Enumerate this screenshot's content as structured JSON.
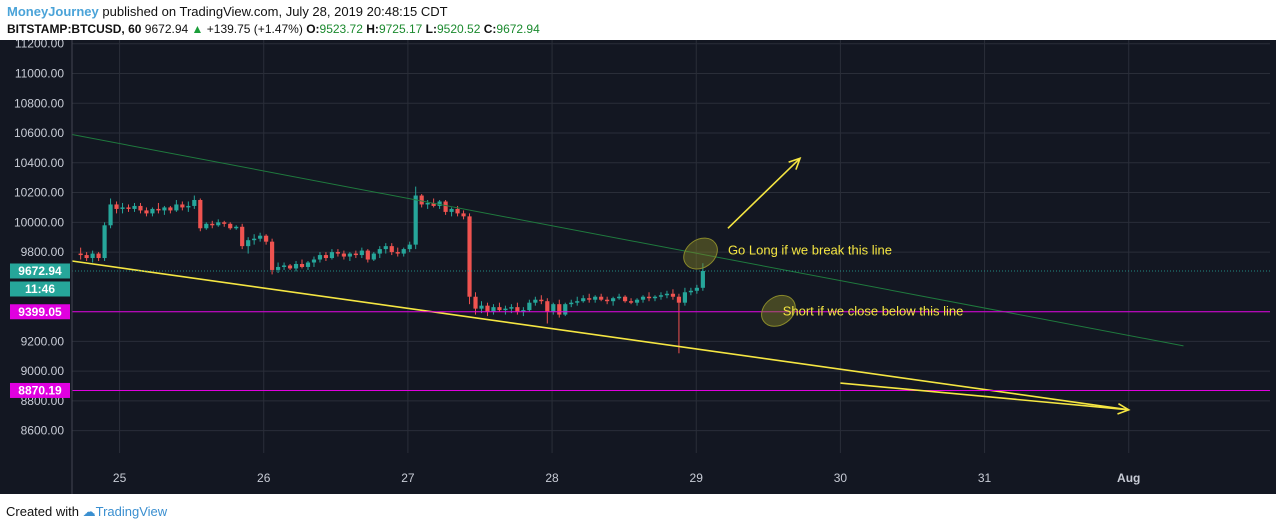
{
  "header": {
    "author": "MoneyJourney",
    "published": "published on TradingView.com, July 28, 2019 20:48:15 CDT",
    "symbol": "BITSTAMP:BTCUSD, 60",
    "last": "9672.94",
    "change": "+139.75 (+1.47%)",
    "o_label": "O:",
    "o_value": "9523.72",
    "h_label": "H:",
    "h_value": "9725.17",
    "l_label": "L:",
    "l_value": "9520.52",
    "c_label": "C:",
    "c_value": "9672.94"
  },
  "footer": {
    "created_with": "Created with",
    "brand": "TradingView"
  },
  "colors": {
    "background": "#131722",
    "grid": "#2a2e39",
    "up": "#26a69a",
    "down": "#ef5350",
    "yellow_line": "#f5e642",
    "green_line": "#1f7a3e",
    "magenta": "#e000e0",
    "price_tag": "#26a69a",
    "annotation_text": "#f5e642"
  },
  "chart_data": {
    "type": "candlestick",
    "ylim": [
      8450,
      11225
    ],
    "y_ticks": [
      "11200.00",
      "11000.00",
      "10800.00",
      "10600.00",
      "10400.00",
      "10200.00",
      "10000.00",
      "9800.00",
      "9200.00",
      "9000.00",
      "8800.00",
      "8600.00"
    ],
    "x_ticks": [
      {
        "label": "25",
        "x": 25.0
      },
      {
        "label": "26",
        "x": 26.0
      },
      {
        "label": "27",
        "x": 27.0
      },
      {
        "label": "28",
        "x": 28.0
      },
      {
        "label": "29",
        "x": 29.0
      },
      {
        "label": "30",
        "x": 30.0
      },
      {
        "label": "31",
        "x": 31.0
      },
      {
        "label": "Aug",
        "x": 32.0
      }
    ],
    "xlim": [
      24.67,
      32.98
    ],
    "candles_start": 24.73,
    "candles_step": 0.0415,
    "candles": [
      [
        9790,
        9830,
        9750,
        9780
      ],
      [
        9780,
        9800,
        9740,
        9760
      ],
      [
        9760,
        9810,
        9730,
        9790
      ],
      [
        9790,
        9800,
        9740,
        9760
      ],
      [
        9760,
        10000,
        9740,
        9980
      ],
      [
        9980,
        10160,
        9960,
        10120
      ],
      [
        10120,
        10140,
        10060,
        10090
      ],
      [
        10090,
        10130,
        10060,
        10100
      ],
      [
        10100,
        10120,
        10070,
        10090
      ],
      [
        10090,
        10130,
        10070,
        10110
      ],
      [
        10110,
        10130,
        10060,
        10080
      ],
      [
        10080,
        10100,
        10040,
        10060
      ],
      [
        10060,
        10100,
        10040,
        10090
      ],
      [
        10090,
        10130,
        10060,
        10080
      ],
      [
        10080,
        10110,
        10050,
        10100
      ],
      [
        10100,
        10110,
        10060,
        10080
      ],
      [
        10080,
        10150,
        10070,
        10120
      ],
      [
        10120,
        10140,
        10080,
        10100
      ],
      [
        10100,
        10140,
        10070,
        10110
      ],
      [
        10110,
        10180,
        10090,
        10150
      ],
      [
        10150,
        10160,
        9940,
        9960
      ],
      [
        9960,
        10000,
        9950,
        9990
      ],
      [
        9990,
        10010,
        9960,
        9980
      ],
      [
        9980,
        10020,
        9970,
        10000
      ],
      [
        10000,
        10010,
        9970,
        9990
      ],
      [
        9990,
        10000,
        9950,
        9960
      ],
      [
        9960,
        9980,
        9950,
        9970
      ],
      [
        9970,
        9990,
        9820,
        9840
      ],
      [
        9840,
        9900,
        9790,
        9880
      ],
      [
        9880,
        9920,
        9850,
        9890
      ],
      [
        9890,
        9930,
        9870,
        9910
      ],
      [
        9910,
        9920,
        9850,
        9870
      ],
      [
        9870,
        9890,
        9650,
        9680
      ],
      [
        9680,
        9730,
        9660,
        9700
      ],
      [
        9700,
        9730,
        9680,
        9710
      ],
      [
        9710,
        9720,
        9680,
        9690
      ],
      [
        9690,
        9740,
        9670,
        9720
      ],
      [
        9720,
        9750,
        9690,
        9700
      ],
      [
        9700,
        9740,
        9680,
        9730
      ],
      [
        9730,
        9770,
        9700,
        9750
      ],
      [
        9750,
        9800,
        9730,
        9780
      ],
      [
        9780,
        9800,
        9740,
        9760
      ],
      [
        9760,
        9820,
        9750,
        9800
      ],
      [
        9800,
        9820,
        9770,
        9790
      ],
      [
        9790,
        9810,
        9750,
        9770
      ],
      [
        9770,
        9800,
        9740,
        9790
      ],
      [
        9790,
        9810,
        9760,
        9780
      ],
      [
        9780,
        9830,
        9760,
        9810
      ],
      [
        9810,
        9820,
        9730,
        9750
      ],
      [
        9750,
        9800,
        9740,
        9790
      ],
      [
        9790,
        9840,
        9760,
        9820
      ],
      [
        9820,
        9860,
        9790,
        9840
      ],
      [
        9840,
        9860,
        9780,
        9800
      ],
      [
        9800,
        9830,
        9770,
        9790
      ],
      [
        9790,
        9830,
        9770,
        9820
      ],
      [
        9820,
        9870,
        9800,
        9850
      ],
      [
        9850,
        10240,
        9820,
        10180
      ],
      [
        10180,
        10190,
        10100,
        10120
      ],
      [
        10120,
        10150,
        10090,
        10130
      ],
      [
        10130,
        10160,
        10100,
        10110
      ],
      [
        10110,
        10150,
        10090,
        10140
      ],
      [
        10140,
        10150,
        10050,
        10070
      ],
      [
        10070,
        10100,
        10040,
        10090
      ],
      [
        10090,
        10110,
        10040,
        10060
      ],
      [
        10060,
        10080,
        10020,
        10040
      ],
      [
        10040,
        10060,
        9450,
        9500
      ],
      [
        9500,
        9530,
        9380,
        9420
      ],
      [
        9420,
        9470,
        9390,
        9440
      ],
      [
        9440,
        9460,
        9370,
        9400
      ],
      [
        9400,
        9450,
        9380,
        9430
      ],
      [
        9430,
        9460,
        9400,
        9410
      ],
      [
        9410,
        9440,
        9380,
        9420
      ],
      [
        9420,
        9450,
        9390,
        9430
      ],
      [
        9430,
        9460,
        9380,
        9400
      ],
      [
        9400,
        9430,
        9370,
        9410
      ],
      [
        9410,
        9480,
        9400,
        9460
      ],
      [
        9460,
        9500,
        9440,
        9480
      ],
      [
        9480,
        9510,
        9450,
        9470
      ],
      [
        9470,
        9490,
        9320,
        9400
      ],
      [
        9400,
        9460,
        9380,
        9450
      ],
      [
        9450,
        9480,
        9360,
        9380
      ],
      [
        9380,
        9460,
        9370,
        9450
      ],
      [
        9450,
        9480,
        9430,
        9460
      ],
      [
        9460,
        9500,
        9440,
        9470
      ],
      [
        9470,
        9510,
        9460,
        9490
      ],
      [
        9490,
        9520,
        9460,
        9480
      ],
      [
        9480,
        9510,
        9460,
        9500
      ],
      [
        9500,
        9520,
        9470,
        9480
      ],
      [
        9480,
        9500,
        9450,
        9470
      ],
      [
        9470,
        9500,
        9440,
        9490
      ],
      [
        9490,
        9520,
        9480,
        9500
      ],
      [
        9500,
        9510,
        9460,
        9470
      ],
      [
        9470,
        9490,
        9450,
        9460
      ],
      [
        9460,
        9490,
        9440,
        9480
      ],
      [
        9480,
        9510,
        9460,
        9500
      ],
      [
        9500,
        9530,
        9470,
        9490
      ],
      [
        9490,
        9510,
        9470,
        9500
      ],
      [
        9500,
        9530,
        9480,
        9510
      ],
      [
        9510,
        9540,
        9490,
        9520
      ],
      [
        9520,
        9550,
        9480,
        9500
      ],
      [
        9500,
        9520,
        9120,
        9460
      ],
      [
        9460,
        9560,
        9440,
        9530
      ],
      [
        9530,
        9560,
        9510,
        9540
      ],
      [
        9540,
        9580,
        9520,
        9560
      ],
      [
        9560,
        9725,
        9540,
        9673
      ]
    ],
    "green_trendline": [
      [
        24.67,
        10590
      ],
      [
        32.38,
        9170
      ]
    ],
    "yellow_trendline": [
      [
        24.67,
        9740
      ],
      [
        32.0,
        8740
      ]
    ],
    "horizontal_lines": [
      {
        "label": "9399.05",
        "value": 9399.05,
        "color": "#e000e0"
      },
      {
        "label": "8870.19",
        "value": 8870.19,
        "color": "#e000e0"
      }
    ],
    "current_price": {
      "label": "9672.94",
      "value": 9672.94,
      "countdown": "11:46"
    },
    "annotations": [
      {
        "text": "Go Long if we break this line",
        "x": 29.22,
        "y": 9785
      },
      {
        "text": "Short if we close below this line",
        "x": 29.6,
        "y": 9375
      }
    ],
    "ellipses": [
      [
        29.03,
        9790
      ],
      [
        29.57,
        9405
      ]
    ],
    "arrows": [
      {
        "from": [
          29.22,
          9960
        ],
        "to": [
          29.72,
          10430
        ]
      },
      {
        "from": [
          30.0,
          8920
        ],
        "to": [
          32.0,
          8740
        ]
      }
    ]
  }
}
